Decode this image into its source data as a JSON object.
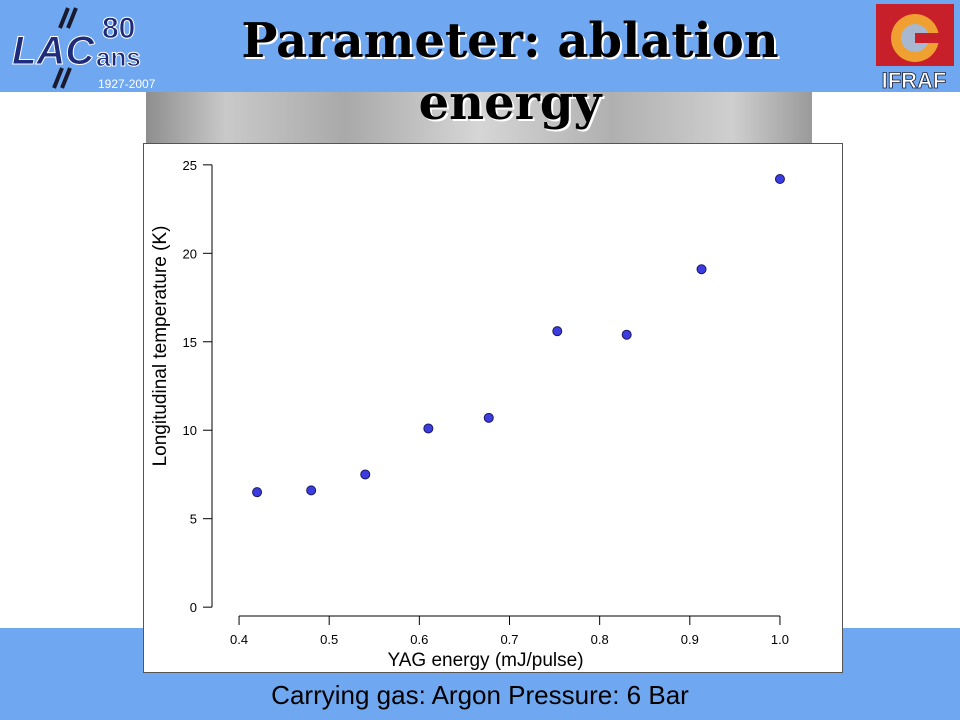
{
  "slide": {
    "title": "Parameter: ablation energy",
    "caption": "Carrying gas: Argon Pressure: 6 Bar",
    "band_color": "#6fa8f0"
  },
  "logos": {
    "left": {
      "mark": "LAC",
      "years_big": "80",
      "years_word": "ans",
      "years_range": "1927-2007"
    },
    "right": {
      "mark": "IFRAF"
    }
  },
  "chart_data": {
    "type": "scatter",
    "xlabel": "YAG energy (mJ/pulse)",
    "ylabel": "Longitudinal temperature (K)",
    "xlim": [
      0.37,
      1.03
    ],
    "ylim": [
      -0.5,
      25.5
    ],
    "xticks": [
      0.4,
      0.5,
      0.6,
      0.7,
      0.8,
      0.9,
      1.0
    ],
    "xtick_labels": [
      "0.4",
      "0.5",
      "0.6",
      "0.7",
      "0.8",
      "0.9",
      "1.0"
    ],
    "yticks": [
      0,
      5,
      10,
      15,
      20,
      25
    ],
    "ytick_labels": [
      "0",
      "5",
      "10",
      "15",
      "20",
      "25"
    ],
    "marker_color": "#3c3ce0",
    "series": [
      {
        "x": [
          0.42,
          0.48,
          0.54,
          0.61,
          0.677,
          0.753,
          0.83,
          0.913,
          1.0
        ],
        "y": [
          6.5,
          6.6,
          7.5,
          10.1,
          10.7,
          15.6,
          15.4,
          19.1,
          24.2
        ]
      }
    ]
  }
}
